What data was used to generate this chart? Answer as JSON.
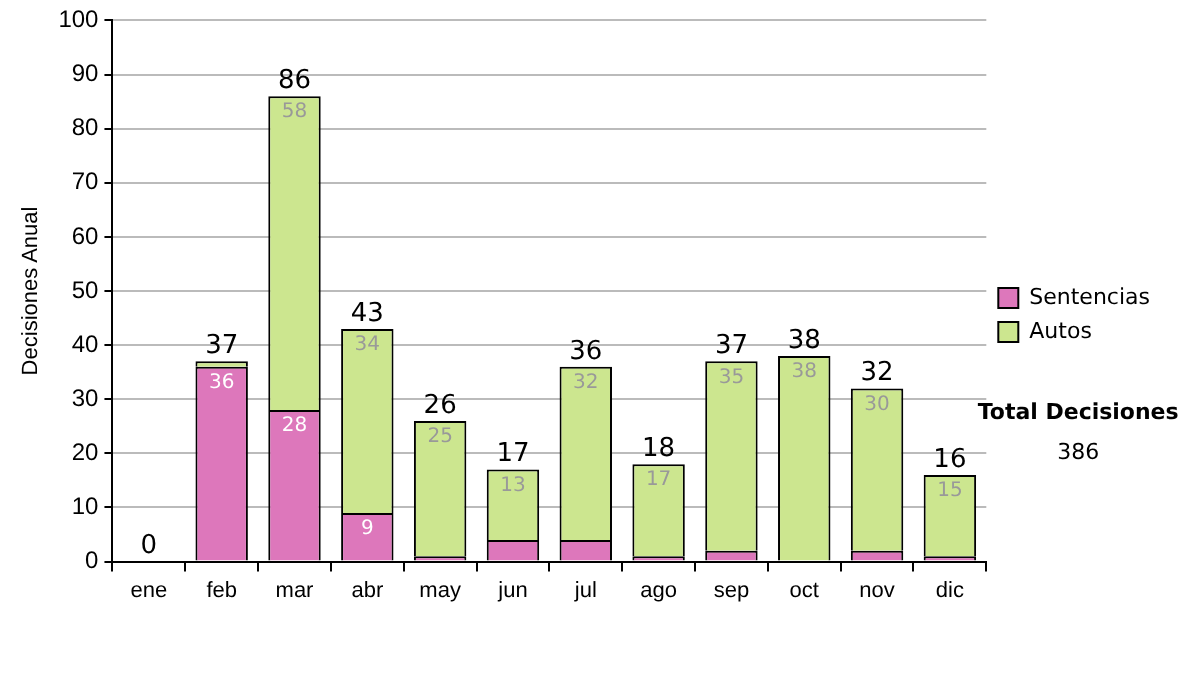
{
  "chart_data": {
    "type": "bar",
    "stacked": true,
    "ylabel": "Decisiones Anual",
    "categories": [
      "ene",
      "feb",
      "mar",
      "abr",
      "may",
      "jun",
      "jul",
      "ago",
      "sep",
      "oct",
      "nov",
      "dic"
    ],
    "series": [
      {
        "name": "Sentencias",
        "color": "#dd77bb",
        "values": [
          0,
          36,
          28,
          9,
          1,
          4,
          4,
          1,
          2,
          0,
          2,
          1
        ],
        "value_labels": [
          null,
          "36",
          "28",
          "9",
          null,
          null,
          null,
          null,
          null,
          null,
          null,
          null
        ]
      },
      {
        "name": "Autos",
        "color": "#cce68f",
        "values": [
          0,
          1,
          58,
          34,
          25,
          13,
          32,
          17,
          35,
          38,
          30,
          15
        ],
        "value_labels": [
          null,
          null,
          "58",
          "34",
          "25",
          "13",
          "32",
          "17",
          "35",
          "38",
          "30",
          "15"
        ]
      }
    ],
    "totals": [
      "0",
      "37",
      "86",
      "43",
      "26",
      "17",
      "36",
      "18",
      "37",
      "38",
      "32",
      "16"
    ],
    "ylim": [
      0,
      100
    ],
    "yticks": [
      0,
      10,
      20,
      30,
      40,
      50,
      60,
      70,
      80,
      90,
      100
    ],
    "grid": "y",
    "legend": "right",
    "annotations": [
      "Total Decisiones",
      "386"
    ]
  }
}
